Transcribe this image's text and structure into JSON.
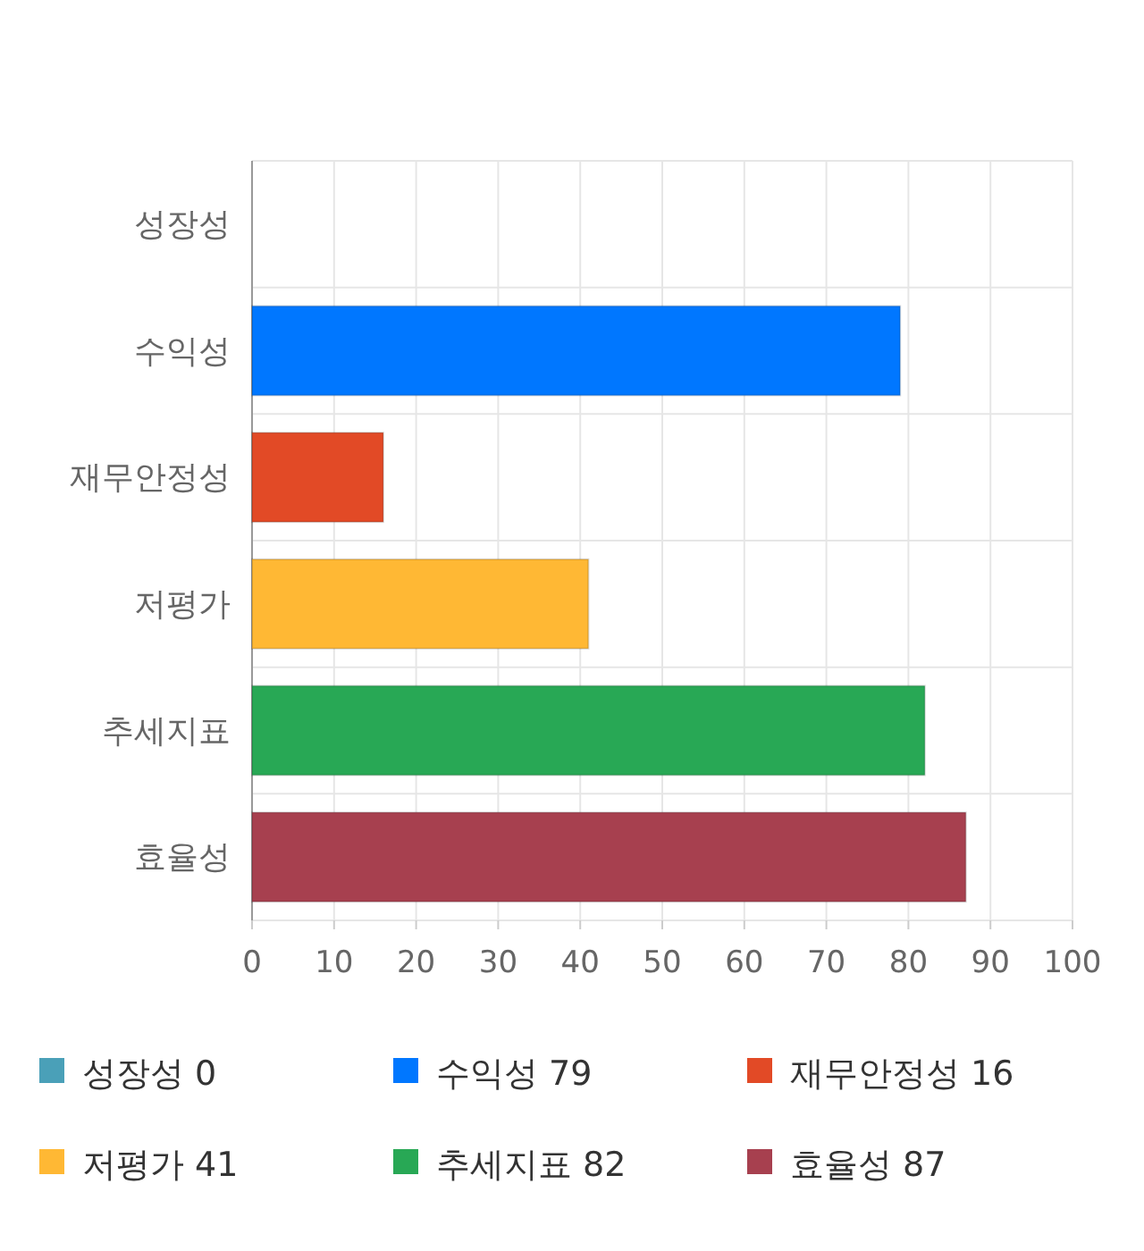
{
  "chart_data": {
    "type": "bar",
    "orientation": "horizontal",
    "categories": [
      "성장성",
      "수익성",
      "재무안정성",
      "저평가",
      "추세지표",
      "효율성"
    ],
    "series": [
      {
        "name": "성장성 0",
        "color": "#4aa0b8",
        "values": [
          0,
          null,
          null,
          null,
          null,
          null
        ]
      },
      {
        "name": "수익성 79",
        "color": "#0077ff",
        "values": [
          null,
          79,
          null,
          null,
          null,
          null
        ]
      },
      {
        "name": "재무안정성 16",
        "color": "#e24a26",
        "values": [
          null,
          null,
          16,
          null,
          null,
          null
        ]
      },
      {
        "name": "저평가 41",
        "color": "#ffb834",
        "values": [
          null,
          null,
          null,
          41,
          null,
          null
        ]
      },
      {
        "name": "추세지표 82",
        "color": "#28a855",
        "values": [
          null,
          null,
          null,
          null,
          82,
          null
        ]
      },
      {
        "name": "효율성 87",
        "color": "#a7404f",
        "values": [
          null,
          null,
          null,
          null,
          null,
          87
        ]
      }
    ],
    "xlim": [
      0,
      100
    ],
    "xticks": [
      0,
      10,
      20,
      30,
      40,
      50,
      60,
      70,
      80,
      90,
      100
    ],
    "grid": true,
    "legend": "bottom"
  }
}
